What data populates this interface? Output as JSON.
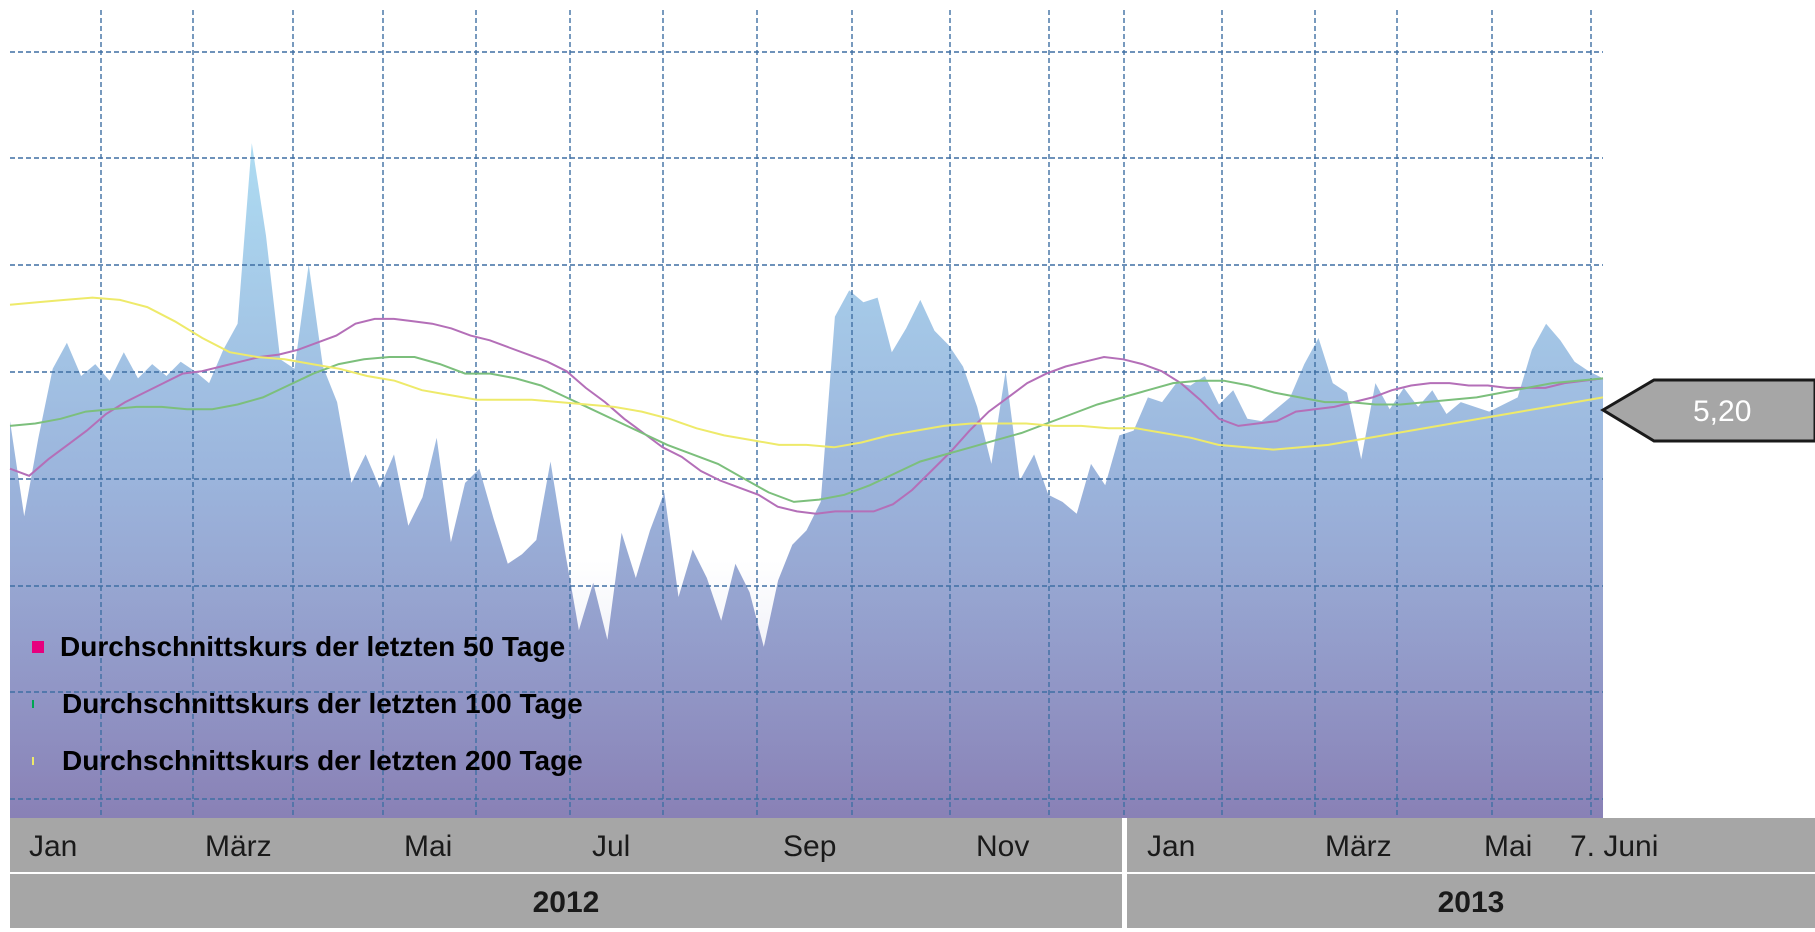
{
  "chart_data": {
    "type": "area",
    "x_ticks": [
      "Jan",
      "März",
      "Mai",
      "Jul",
      "Sep",
      "Nov",
      "Jan",
      "März",
      "Mai",
      "7. Juni"
    ],
    "years": [
      "2012",
      "2013"
    ],
    "current_value_label": "5,20",
    "grid": true,
    "legend_position": "bottom-left",
    "series": [
      {
        "kind": "area",
        "values": [
          5.02,
          4.62,
          4.95,
          5.24,
          5.35,
          5.21,
          5.26,
          5.19,
          5.31,
          5.2,
          5.26,
          5.21,
          5.27,
          5.23,
          5.18,
          5.32,
          5.43,
          6.19,
          5.8,
          5.28,
          5.24,
          5.68,
          5.25,
          5.1,
          4.76,
          4.88,
          4.74,
          4.88,
          4.58,
          4.7,
          4.95,
          4.51,
          4.76,
          4.82,
          4.61,
          4.42,
          4.46,
          4.52,
          4.85,
          4.48,
          4.14,
          4.34,
          4.1,
          4.55,
          4.36,
          4.56,
          4.72,
          4.28,
          4.48,
          4.36,
          4.18,
          4.42,
          4.3,
          4.07,
          4.35,
          4.5,
          4.56,
          4.68,
          5.46,
          5.57,
          5.52,
          5.54,
          5.31,
          5.41,
          5.53,
          5.4,
          5.34,
          5.25,
          5.08,
          4.84,
          5.23,
          4.77,
          4.88,
          4.71,
          4.68,
          4.63,
          4.84,
          4.75,
          4.96,
          4.98,
          5.12,
          5.1,
          5.18,
          5.17,
          5.21,
          5.09,
          5.15,
          5.03,
          5.02,
          5.07,
          5.12,
          5.26,
          5.37,
          5.18,
          5.14,
          4.86,
          5.18,
          5.07,
          5.16,
          5.08,
          5.15,
          5.05,
          5.1,
          5.08,
          5.06,
          5.09,
          5.12,
          5.32,
          5.43,
          5.36,
          5.27,
          5.23,
          5.2
        ],
        "color": "#9fd4ee"
      },
      {
        "name": "Durchschnittskurs der letzten 50 Tage",
        "values": [
          4.82,
          4.79,
          4.86,
          4.92,
          4.98,
          5.05,
          5.1,
          5.14,
          5.18,
          5.22,
          5.23,
          5.25,
          5.27,
          5.29,
          5.3,
          5.32,
          5.35,
          5.38,
          5.43,
          5.45,
          5.45,
          5.44,
          5.43,
          5.41,
          5.38,
          5.36,
          5.33,
          5.3,
          5.27,
          5.23,
          5.16,
          5.1,
          5.03,
          4.97,
          4.91,
          4.87,
          4.81,
          4.77,
          4.74,
          4.71,
          4.66,
          4.64,
          4.63,
          4.64,
          4.64,
          4.64,
          4.67,
          4.73,
          4.81,
          4.89,
          4.98,
          5.06,
          5.12,
          5.18,
          5.22,
          5.25,
          5.27,
          5.29,
          5.28,
          5.26,
          5.23,
          5.18,
          5.11,
          5.03,
          5.0,
          5.01,
          5.02,
          5.06,
          5.07,
          5.08,
          5.1,
          5.12,
          5.15,
          5.17,
          5.18,
          5.18,
          5.17,
          5.17,
          5.16,
          5.16,
          5.16,
          5.18,
          5.19,
          5.2
        ],
        "color": "#b46fb8",
        "marker_color": "#e6007e"
      },
      {
        "name": "Durchschnittskurs der letzten 100 Tage",
        "values": [
          5.0,
          5.01,
          5.03,
          5.06,
          5.07,
          5.08,
          5.08,
          5.07,
          5.07,
          5.09,
          5.12,
          5.17,
          5.22,
          5.26,
          5.28,
          5.29,
          5.29,
          5.26,
          5.22,
          5.22,
          5.2,
          5.17,
          5.12,
          5.07,
          5.02,
          4.97,
          4.92,
          4.88,
          4.84,
          4.78,
          4.72,
          4.68,
          4.69,
          4.71,
          4.75,
          4.8,
          4.85,
          4.88,
          4.91,
          4.94,
          4.97,
          5.01,
          5.05,
          5.09,
          5.12,
          5.15,
          5.18,
          5.19,
          5.19,
          5.17,
          5.14,
          5.12,
          5.1,
          5.1,
          5.09,
          5.09,
          5.1,
          5.11,
          5.12,
          5.14,
          5.16,
          5.18,
          5.19,
          5.2
        ],
        "color": "#7cbf7c",
        "marker_color": "#00a651"
      },
      {
        "name": "Durchschnittskurs der letzten 200 Tage",
        "values": [
          5.51,
          5.52,
          5.53,
          5.54,
          5.53,
          5.5,
          5.44,
          5.37,
          5.31,
          5.29,
          5.28,
          5.26,
          5.24,
          5.21,
          5.19,
          5.15,
          5.13,
          5.11,
          5.11,
          5.11,
          5.1,
          5.09,
          5.08,
          5.06,
          5.03,
          4.99,
          4.96,
          4.94,
          4.92,
          4.92,
          4.91,
          4.93,
          4.96,
          4.98,
          5.0,
          5.01,
          5.01,
          5.01,
          5.0,
          5.0,
          4.99,
          4.99,
          4.97,
          4.95,
          4.92,
          4.91,
          4.9,
          4.91,
          4.92,
          4.94,
          4.96,
          4.98,
          5.0,
          5.02,
          5.04,
          5.06,
          5.08,
          5.1,
          5.12
        ],
        "color": "#eeea6a",
        "marker_color": "#eeea6a"
      }
    ]
  }
}
